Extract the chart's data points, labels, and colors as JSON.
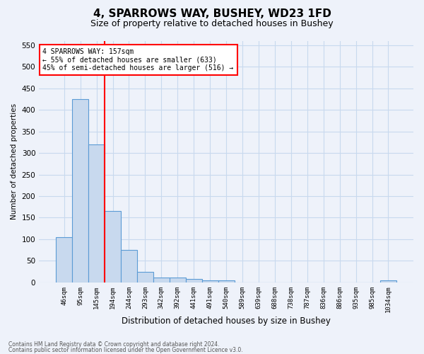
{
  "title1": "4, SPARROWS WAY, BUSHEY, WD23 1FD",
  "title2": "Size of property relative to detached houses in Bushey",
  "xlabel": "Distribution of detached houses by size in Bushey",
  "ylabel": "Number of detached properties",
  "categories": [
    "46sqm",
    "95sqm",
    "145sqm",
    "194sqm",
    "244sqm",
    "293sqm",
    "342sqm",
    "392sqm",
    "441sqm",
    "491sqm",
    "540sqm",
    "589sqm",
    "639sqm",
    "688sqm",
    "738sqm",
    "787sqm",
    "836sqm",
    "886sqm",
    "935sqm",
    "985sqm",
    "1034sqm"
  ],
  "values": [
    105,
    425,
    320,
    165,
    75,
    25,
    12,
    12,
    8,
    5,
    5,
    0,
    0,
    0,
    0,
    0,
    0,
    0,
    0,
    0,
    5
  ],
  "bar_color": "#c8d9ee",
  "bar_edge_color": "#5b9bd5",
  "grid_color": "#c8d9ee",
  "vline_color": "red",
  "annotation_text": "4 SPARROWS WAY: 157sqm\n← 55% of detached houses are smaller (633)\n45% of semi-detached houses are larger (516) →",
  "annotation_box_color": "white",
  "annotation_box_edge": "red",
  "ylim": [
    0,
    560
  ],
  "yticks": [
    0,
    50,
    100,
    150,
    200,
    250,
    300,
    350,
    400,
    450,
    500,
    550
  ],
  "footnote1": "Contains HM Land Registry data © Crown copyright and database right 2024.",
  "footnote2": "Contains public sector information licensed under the Open Government Licence v3.0.",
  "bg_color": "#eef2fa",
  "title_fontsize": 11,
  "subtitle_fontsize": 9
}
